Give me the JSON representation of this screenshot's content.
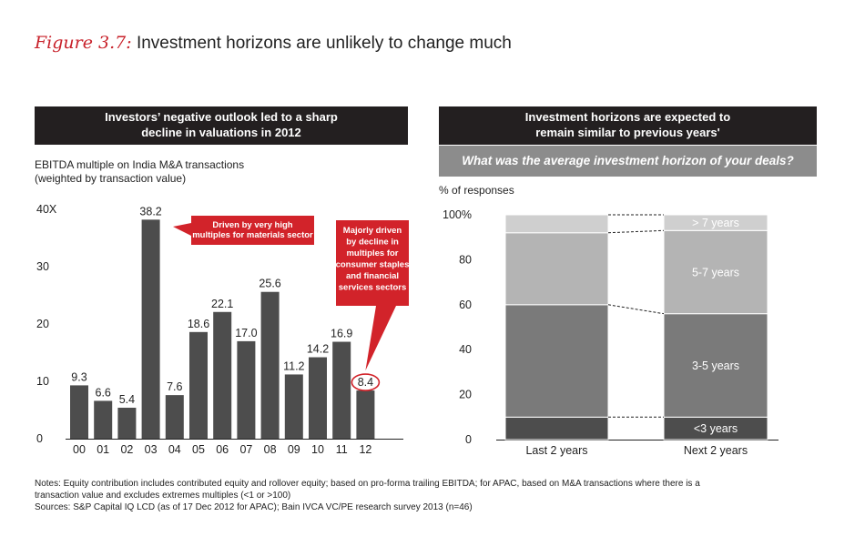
{
  "figure": {
    "lead": "Figure 3.7:",
    "title": "Investment horizons are unlikely to change much"
  },
  "left_panel": {
    "header_line1": "Investors’ negative outlook led to a sharp",
    "header_line2": "decline in valuations in 2012",
    "ylabel_line1": "EBITDA multiple on India M&A transactions",
    "ylabel_line2": "(weighted by transaction value)",
    "callout1_lines": [
      "Driven by very high",
      "multiples for materials sector"
    ],
    "callout2_lines": [
      "Majorly driven",
      "by decline in",
      "multiples for",
      "consumer staples",
      "and financial",
      "services sectors"
    ]
  },
  "right_panel": {
    "header_line1": "Investment horizons are expected to",
    "header_line2": "remain similar to previous years'",
    "question": "What was the average investment horizon of your deals?",
    "ylabel": "% of responses"
  },
  "colors": {
    "bar": "#4d4d4d",
    "callout": "#d2232a",
    "header": "#231f20",
    "subheader": "#8c8c8c",
    "seg1": "#4d4d4d",
    "seg2": "#7a7a7a",
    "seg3": "#b4b4b4",
    "seg4": "#cfcfcf"
  },
  "chart_data": [
    {
      "type": "bar",
      "title": "Investors’ negative outlook led to a sharp decline in valuations in 2012",
      "ylabel": "EBITDA multiple on India M&A transactions (weighted by transaction value)",
      "categories": [
        "00",
        "01",
        "02",
        "03",
        "04",
        "05",
        "06",
        "07",
        "08",
        "09",
        "10",
        "11",
        "12"
      ],
      "values": [
        9.3,
        6.6,
        5.4,
        38.2,
        7.6,
        18.6,
        22.1,
        17.0,
        25.6,
        11.2,
        14.2,
        16.9,
        8.4
      ],
      "value_labels": [
        "9.3",
        "6.6",
        "5.4",
        "38.2",
        "7.6",
        "18.6",
        "22.1",
        "17.0",
        "25.6",
        "11.2",
        "14.2",
        "16.9",
        "8.4"
      ],
      "ylim": [
        0,
        40
      ],
      "yticks": [
        0,
        10,
        20,
        30,
        40
      ],
      "ytick_labels": [
        "0",
        "10",
        "20",
        "30",
        "40X"
      ],
      "highlight_category": "12"
    },
    {
      "type": "bar",
      "stacked": true,
      "title": "Investment horizons are expected to remain similar to previous years'",
      "ylabel": "% of responses",
      "categories": [
        "Last 2 years",
        "Next 2 years"
      ],
      "series": [
        {
          "name": "<3 years",
          "values": [
            10,
            10
          ]
        },
        {
          "name": "3-5 years",
          "values": [
            50,
            46
          ]
        },
        {
          "name": "5-7 years",
          "values": [
            32,
            37
          ]
        },
        {
          "name": "> 7 years",
          "values": [
            8,
            7
          ]
        }
      ],
      "ylim": [
        0,
        100
      ],
      "yticks": [
        0,
        20,
        40,
        60,
        80,
        100
      ],
      "ytick_labels": [
        "0",
        "20",
        "40",
        "60",
        "80",
        "100%"
      ]
    }
  ],
  "notes": {
    "line1": "Notes: Equity contribution includes contributed equity and rollover equity; based on pro-forma trailing EBITDA; for APAC, based on M&A transactions where there is a",
    "line2": "transaction value and excludes extremes multiples (<1 or >100)",
    "line3": "Sources: S&P Capital IQ LCD (as of 17 Dec 2012 for APAC); Bain IVCA VC/PE research survey 2013 (n=46)"
  }
}
